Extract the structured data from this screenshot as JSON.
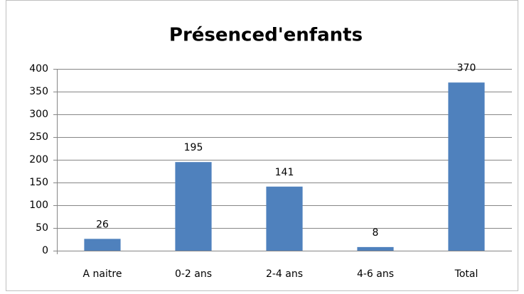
{
  "chart_data": {
    "type": "bar",
    "title": "Présenced'enfants",
    "categories": [
      "A naitre",
      "0-2 ans",
      "2-4 ans",
      "4-6 ans",
      "Total"
    ],
    "values": [
      26,
      195,
      141,
      8,
      370
    ],
    "color": "#4f81bd",
    "ylim": [
      0,
      400
    ],
    "yticks": [
      0,
      50,
      100,
      150,
      200,
      250,
      300,
      350,
      400
    ],
    "grid": true
  }
}
